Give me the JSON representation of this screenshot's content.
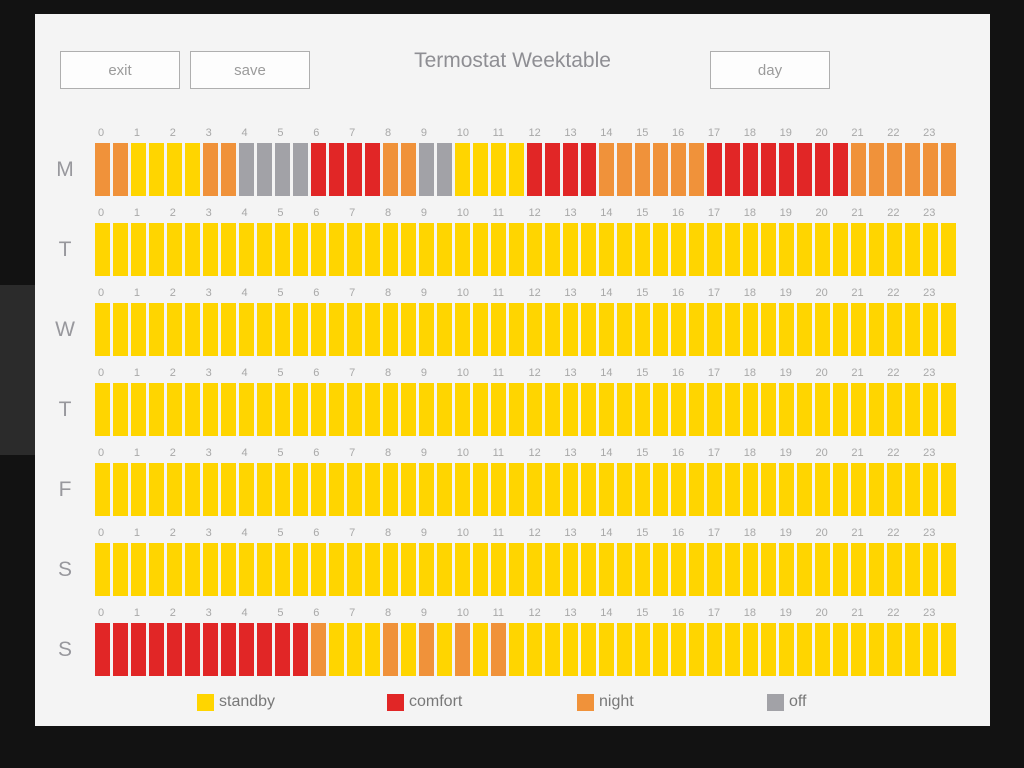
{
  "header": {
    "title": "Termostat Weektable",
    "exit_label": "exit",
    "save_label": "save",
    "day_label": "day"
  },
  "colors": {
    "standby": "#FFD500",
    "comfort": "#E12626",
    "night": "#F0923A",
    "off": "#A2A2A7"
  },
  "cell_codes": {
    "s": "standby",
    "c": "comfort",
    "n": "night",
    "o": "off"
  },
  "hours": [
    "0",
    "1",
    "2",
    "3",
    "4",
    "5",
    "6",
    "7",
    "8",
    "9",
    "10",
    "11",
    "12",
    "13",
    "14",
    "15",
    "16",
    "17",
    "18",
    "19",
    "20",
    "21",
    "22",
    "23"
  ],
  "days": [
    {
      "label": "M",
      "cells": "nnssssnnooooccccnnoossssccccnnnnnnccccccccnnnnnn"
    },
    {
      "label": "T",
      "cells": "ssssssssssssssssssssssssssssssssssssssssssssssss"
    },
    {
      "label": "W",
      "cells": "ssssssssssssssssssssssssssssssssssssssssssssssss"
    },
    {
      "label": "T",
      "cells": "ssssssssssssssssssssssssssssssssssssssssssssssss"
    },
    {
      "label": "F",
      "cells": "ssssssssssssssssssssssssssssssssssssssssssssssss"
    },
    {
      "label": "S",
      "cells": "ssssssssssssssssssssssssssssssssssssssssssssssss"
    },
    {
      "label": "S",
      "cells": "ccccccccccccnsssnsnsnsnsssssssssssssssssssssssss"
    }
  ],
  "legend": [
    {
      "key": "standby",
      "label": "standby"
    },
    {
      "key": "comfort",
      "label": "comfort"
    },
    {
      "key": "night",
      "label": "night"
    },
    {
      "key": "off",
      "label": "off"
    }
  ]
}
